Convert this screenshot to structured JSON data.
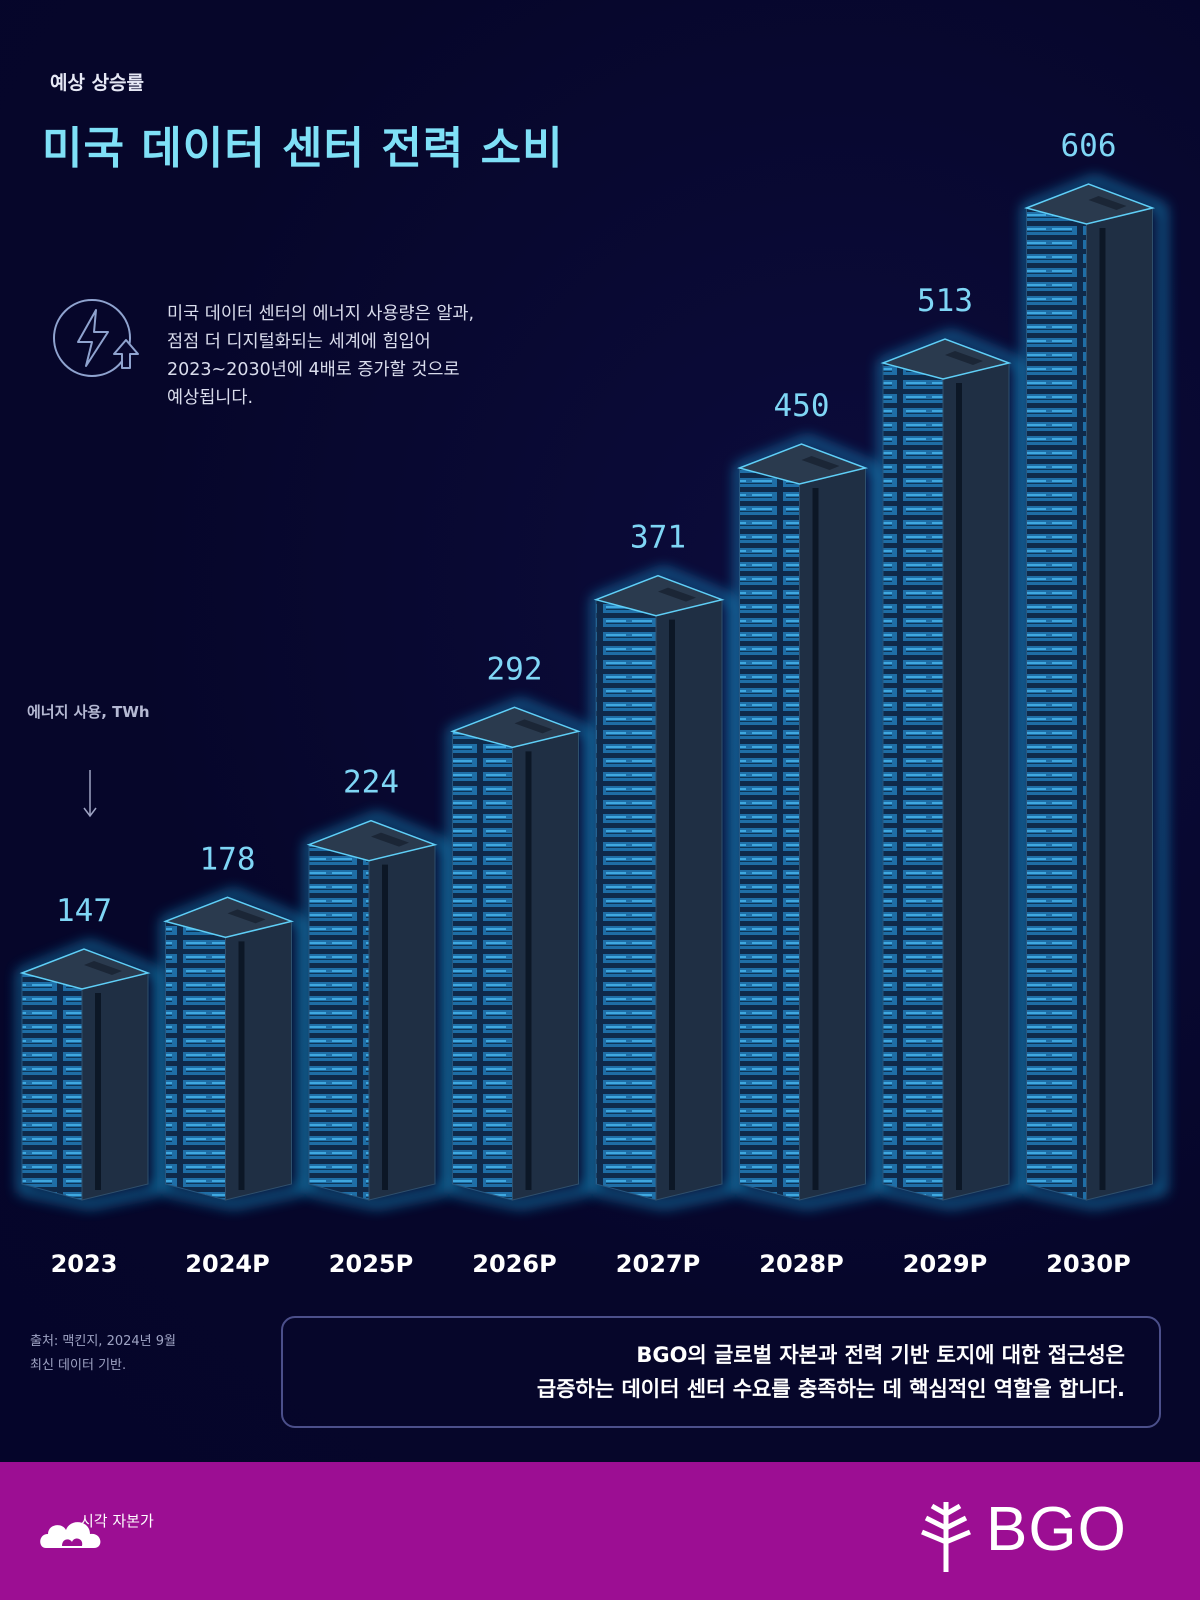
{
  "header": {
    "subtitle": "예상 상승률",
    "title": "미국 데이터 센터 전력 소비"
  },
  "description": {
    "icon": "lightning-up-arrow-icon",
    "lines": [
      "미국 데이터 센터의 에너지 사용량은 알과,",
      "점점 더 디지털화되는 세계에 힘입어",
      "2023~2030년에 4배로 증가할 것으로",
      "예상됩니다."
    ]
  },
  "chart_data": {
    "type": "bar",
    "title": "미국 데이터 센터 전력 소비",
    "ylabel": "에너지 사용, TWh",
    "categories": [
      "2023",
      "2024P",
      "2025P",
      "2026P",
      "2027P",
      "2028P",
      "2029P",
      "2030P"
    ],
    "values": [
      147,
      178,
      224,
      292,
      371,
      450,
      513,
      606
    ],
    "data_labels": [
      "147",
      "178",
      "224",
      "292",
      "371",
      "450",
      "513",
      "606"
    ],
    "bar_style": "server-rack",
    "colors": {
      "label": "#7fd6f5",
      "glow": "#1fc3ff",
      "rack": "#1f2f44"
    }
  },
  "source": {
    "lines": [
      "출처: 맥킨지, 2024년 9월",
      "최신 데이터 기반."
    ]
  },
  "callout": {
    "lines": [
      "BGO의 글로벌 자본과 전력 기반 토지에 대한 접근성은",
      "급증하는 데이터 센터 수요를 충족하는 데 핵심적인 역할을 합니다."
    ]
  },
  "footer": {
    "background": "#9c0e93",
    "publisher": "시각 자본가",
    "publisher_icon": "cloud-logo-icon",
    "brand": "BGO",
    "brand_icon": "leaf-branch-icon"
  }
}
